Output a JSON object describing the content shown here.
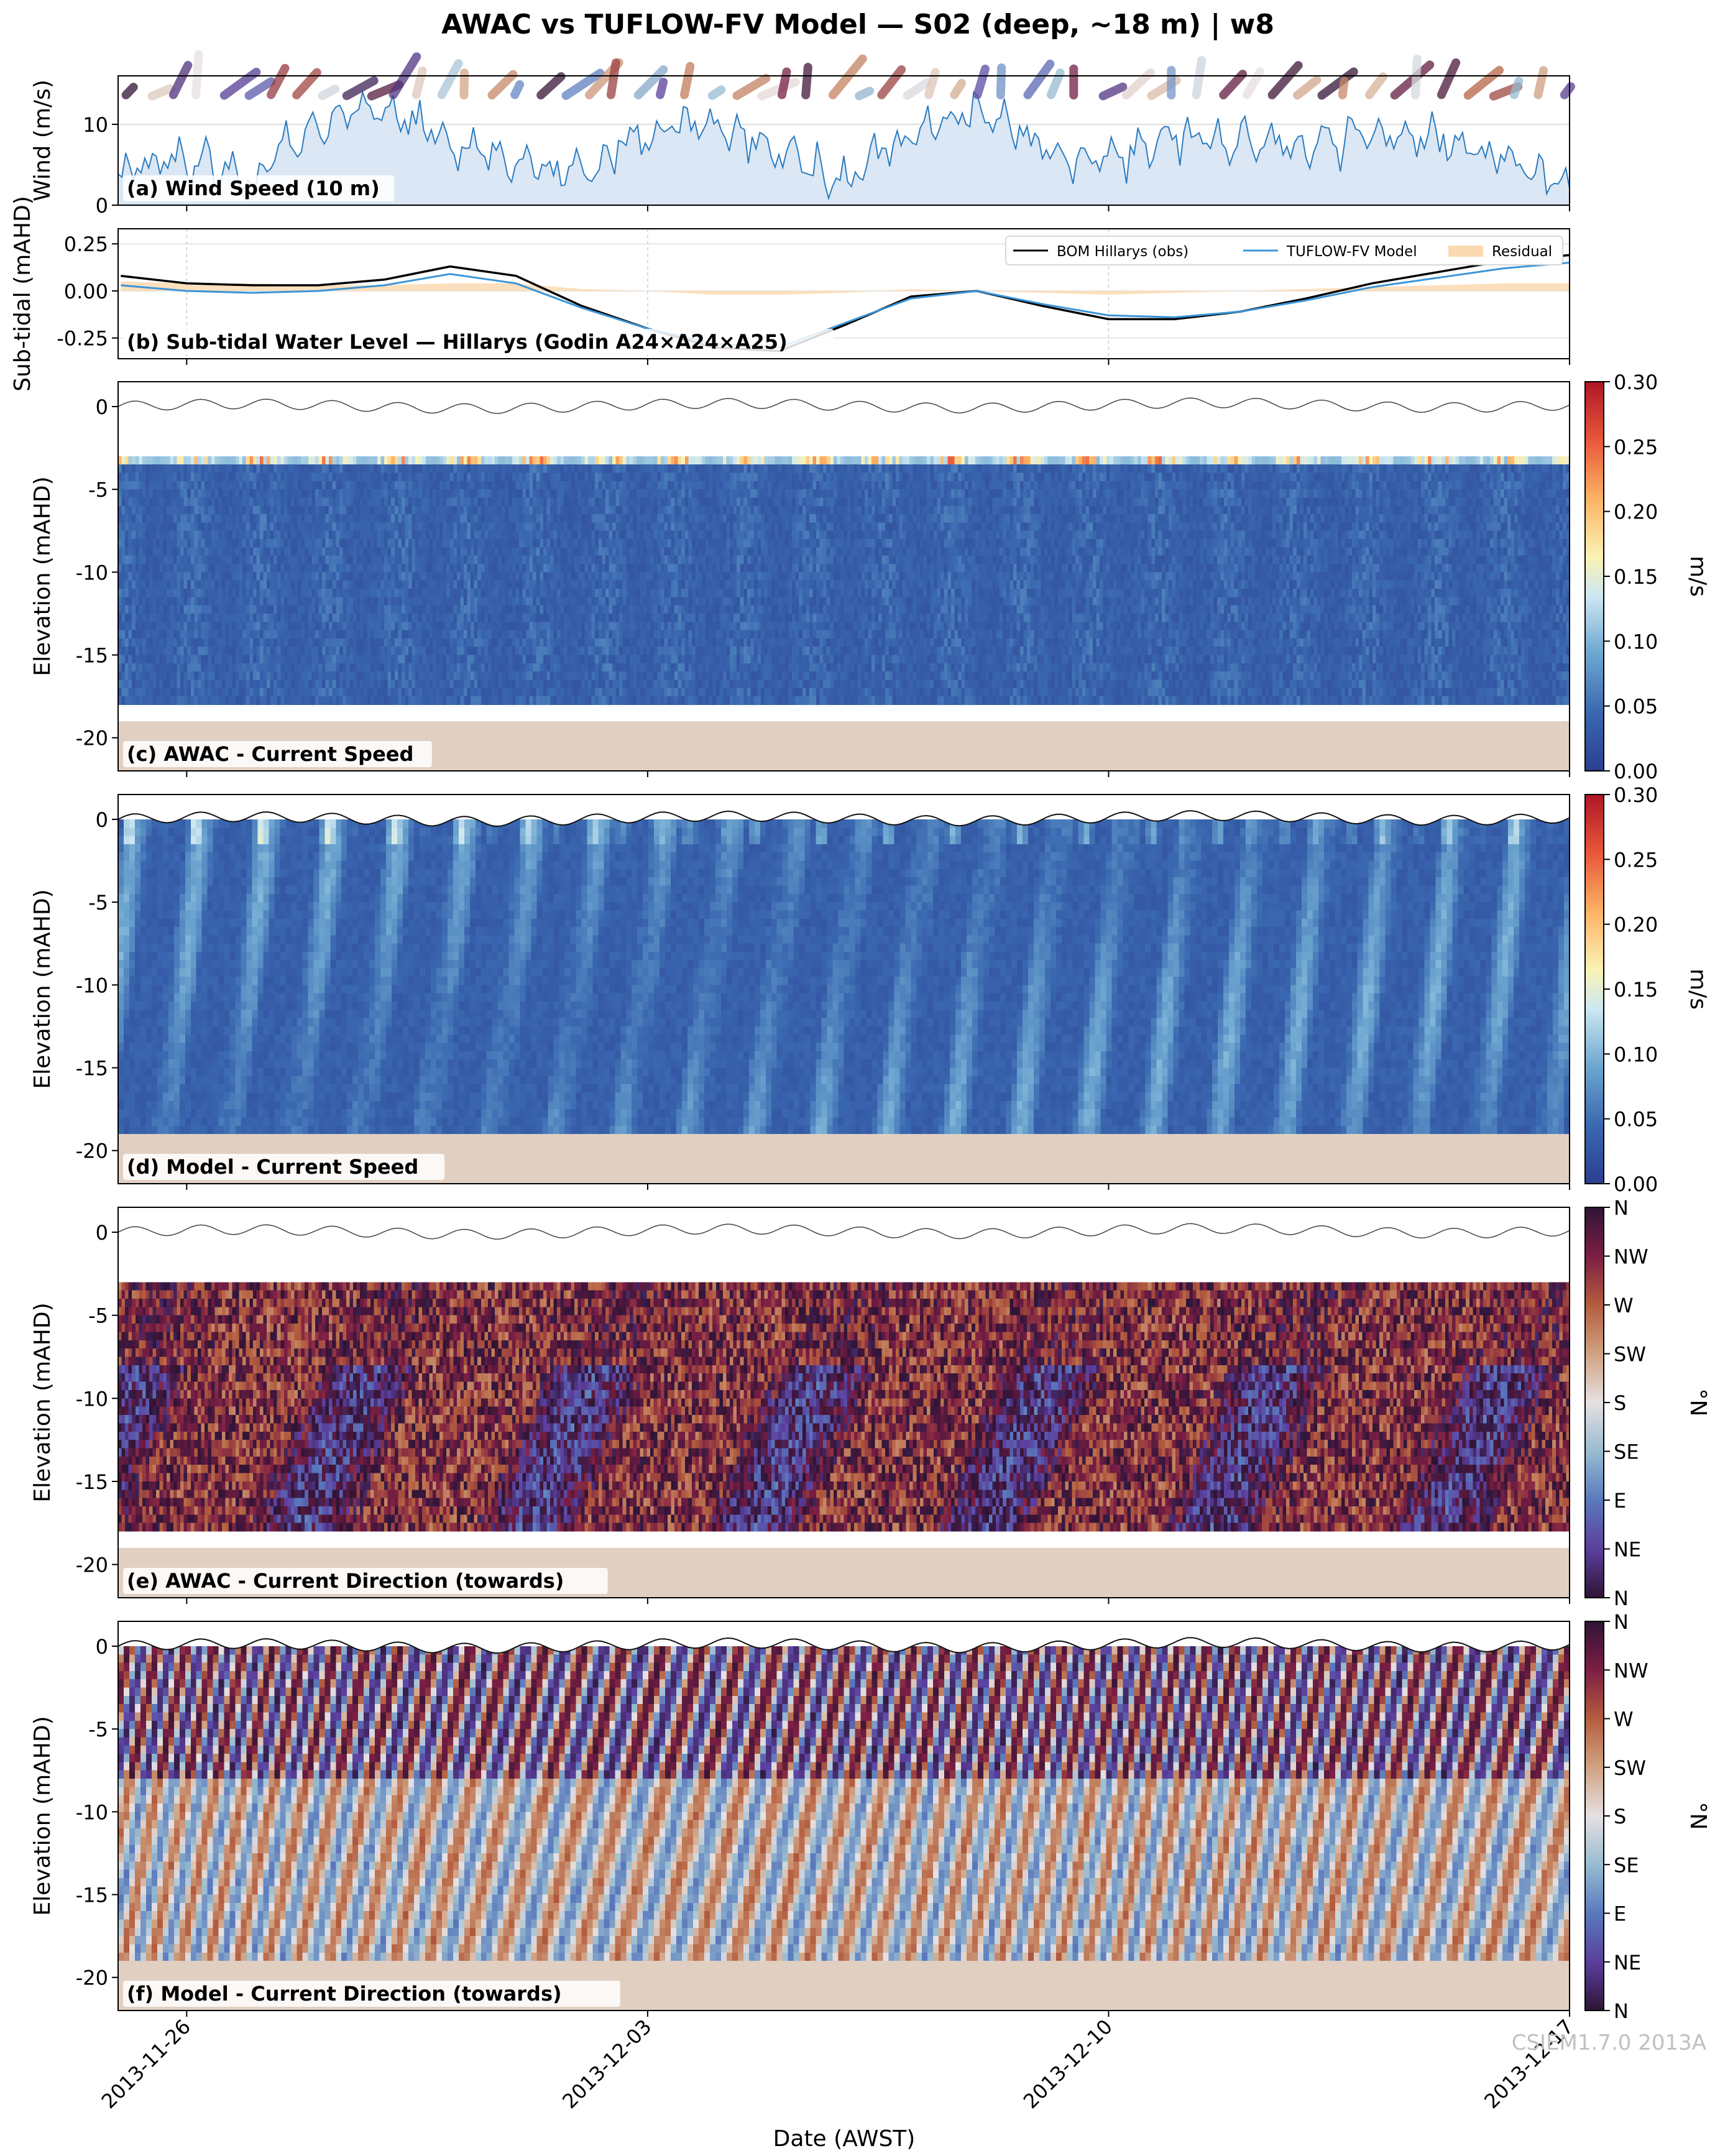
{
  "figure": {
    "title": "AWAC vs TUFLOW-FV Model — S02 (deep, ~18 m) | w8",
    "xlabel": "Date (AWST)",
    "watermark": "CSIEM1.7.0 2013A",
    "x_start": "2013-11-24T23:00",
    "x_end": "2013-12-17T00:00",
    "x_ticks": [
      "2013-11-26",
      "2013-12-03",
      "2013-12-10",
      "2013-12-17"
    ]
  },
  "colors": {
    "wind_fill": "#dbe7f4",
    "wind_line": "#2b7bc0",
    "bom_line": "#000000",
    "model_line": "#3a95d8",
    "residual_fill": "#fbd9b0",
    "seabed": "#e1d0c2",
    "surface_line": "#444444"
  },
  "chart_data": [
    {
      "panel": "a",
      "type": "area",
      "label": "(a) Wind Speed (10 m)",
      "ylabel": "Wind (m/s)",
      "ylim": [
        0,
        16
      ],
      "yticks": [
        0,
        10
      ],
      "x": [
        "2013-11-25",
        "2013-11-26",
        "2013-11-27",
        "2013-11-28",
        "2013-11-29",
        "2013-11-30",
        "2013-12-01",
        "2013-12-02",
        "2013-12-03",
        "2013-12-04",
        "2013-12-05",
        "2013-12-06",
        "2013-12-07",
        "2013-12-08",
        "2013-12-09",
        "2013-12-10",
        "2013-12-11",
        "2013-12-12",
        "2013-12-13",
        "2013-12-14",
        "2013-12-15",
        "2013-12-16",
        "2013-12-17"
      ],
      "values": [
        4,
        6,
        3,
        10,
        12,
        8,
        5,
        4,
        9,
        10,
        7,
        3,
        9,
        12,
        7,
        5,
        9,
        8,
        7,
        9,
        8,
        6,
        2
      ]
    },
    {
      "panel": "b",
      "type": "line",
      "label": "(b) Sub-tidal Water Level — Hillarys (Godin A24×A24×A25)",
      "ylabel": "Sub-tidal (mAHD)",
      "ylim": [
        -0.36,
        0.33
      ],
      "yticks": [
        0.25,
        0.0,
        -0.25
      ],
      "legend_position": "top-right",
      "x": [
        "2013-11-25",
        "2013-11-26",
        "2013-11-27",
        "2013-11-28",
        "2013-11-29",
        "2013-11-30",
        "2013-12-01",
        "2013-12-02",
        "2013-12-03",
        "2013-12-04",
        "2013-12-05",
        "2013-12-06",
        "2013-12-07",
        "2013-12-08",
        "2013-12-09",
        "2013-12-10",
        "2013-12-11",
        "2013-12-12",
        "2013-12-13",
        "2013-12-14",
        "2013-12-15",
        "2013-12-16",
        "2013-12-17"
      ],
      "series": [
        {
          "name": "BOM Hillarys (obs)",
          "values": [
            0.08,
            0.04,
            0.03,
            0.03,
            0.06,
            0.13,
            0.08,
            -0.08,
            -0.2,
            -0.3,
            -0.32,
            -0.18,
            -0.03,
            0.0,
            -0.08,
            -0.15,
            -0.15,
            -0.11,
            -0.04,
            0.04,
            0.1,
            0.16,
            0.19
          ]
        },
        {
          "name": "TUFLOW-FV Model",
          "values": [
            0.03,
            0.0,
            -0.01,
            0.0,
            0.03,
            0.09,
            0.04,
            -0.09,
            -0.2,
            -0.28,
            -0.3,
            -0.17,
            -0.04,
            0.0,
            -0.07,
            -0.13,
            -0.14,
            -0.11,
            -0.05,
            0.02,
            0.07,
            0.12,
            0.15
          ]
        },
        {
          "name": "Residual",
          "values": [
            0.05,
            0.04,
            0.04,
            0.03,
            0.03,
            0.04,
            0.04,
            0.01,
            0.0,
            -0.02,
            -0.02,
            -0.01,
            0.01,
            0.0,
            -0.01,
            -0.02,
            -0.01,
            0.0,
            0.01,
            0.02,
            0.03,
            0.04,
            0.04
          ]
        }
      ]
    },
    {
      "panel": "c",
      "type": "heatmap",
      "label": "(c) AWAC - Current Speed",
      "ylabel": "Elevation (mAHD)",
      "ylim": [
        -22,
        1.5
      ],
      "yticks": [
        0,
        -5,
        -10,
        -15,
        -20
      ],
      "bins_top": -3,
      "bins_bottom": -18,
      "seabed": -19,
      "colorbar_label": "m/s",
      "colorbar_ticks": [
        "0.30",
        "0.25",
        "0.20",
        "0.15",
        "0.10",
        "0.05",
        "0.00"
      ]
    },
    {
      "panel": "d",
      "type": "heatmap",
      "label": "(d) Model - Current Speed",
      "ylabel": "Elevation (mAHD)",
      "ylim": [
        -22,
        1.5
      ],
      "yticks": [
        0,
        -5,
        -10,
        -15,
        -20
      ],
      "bins_top": 0,
      "bins_bottom": -19,
      "seabed": -19,
      "colorbar_label": "m/s",
      "colorbar_ticks": [
        "0.30",
        "0.25",
        "0.20",
        "0.15",
        "0.10",
        "0.05",
        "0.00"
      ]
    },
    {
      "panel": "e",
      "type": "heatmap",
      "label": "(e) AWAC - Current Direction (towards)",
      "ylabel": "Elevation (mAHD)",
      "ylim": [
        -22,
        1.5
      ],
      "yticks": [
        0,
        -5,
        -10,
        -15,
        -20
      ],
      "bins_top": -3,
      "bins_bottom": -18,
      "seabed": -19,
      "colorbar_label": "°N",
      "colorbar_ticks": [
        "N",
        "NW",
        "W",
        "SW",
        "S",
        "SE",
        "E",
        "NE",
        "N"
      ]
    },
    {
      "panel": "f",
      "type": "heatmap",
      "label": "(f) Model - Current Direction (towards)",
      "ylabel": "Elevation (mAHD)",
      "ylim": [
        -22,
        1.5
      ],
      "yticks": [
        0,
        -5,
        -10,
        -15,
        -20
      ],
      "bins_top": 0,
      "bins_bottom": -19,
      "seabed": -19,
      "colorbar_label": "°N",
      "colorbar_ticks": [
        "N",
        "NW",
        "W",
        "SW",
        "S",
        "SE",
        "E",
        "NE",
        "N"
      ]
    }
  ]
}
